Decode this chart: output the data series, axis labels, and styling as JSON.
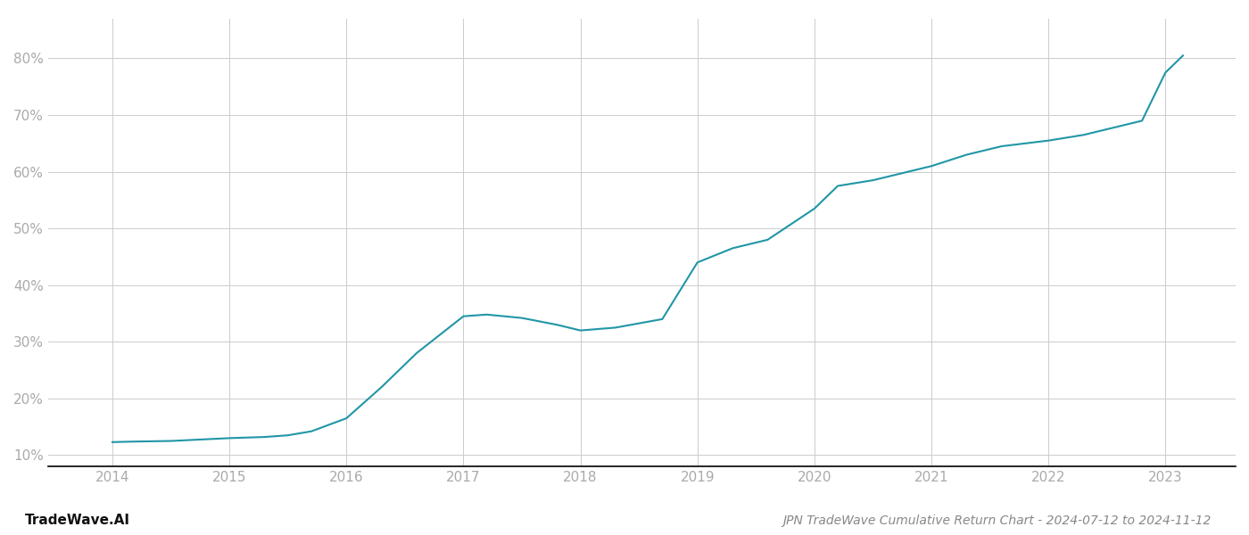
{
  "title": "JPN TradeWave Cumulative Return Chart - 2024-07-12 to 2024-11-12",
  "watermark": "TradeWave.AI",
  "line_color": "#2196a6",
  "background_color": "#ffffff",
  "grid_color": "#cccccc",
  "x_values": [
    2014.0,
    2014.2,
    2014.5,
    2014.8,
    2015.0,
    2015.3,
    2015.5,
    2015.7,
    2016.0,
    2016.3,
    2016.6,
    2017.0,
    2017.2,
    2017.5,
    2017.8,
    2018.0,
    2018.3,
    2018.7,
    2019.0,
    2019.3,
    2019.6,
    2020.0,
    2020.2,
    2020.5,
    2020.7,
    2021.0,
    2021.3,
    2021.6,
    2022.0,
    2022.3,
    2022.6,
    2022.8,
    2023.0,
    2023.15
  ],
  "y_values": [
    12.3,
    12.4,
    12.5,
    12.8,
    13.0,
    13.2,
    13.5,
    14.2,
    16.5,
    22.0,
    28.0,
    34.5,
    34.8,
    34.2,
    33.0,
    32.0,
    32.5,
    34.0,
    44.0,
    46.5,
    48.0,
    53.5,
    57.5,
    58.5,
    59.5,
    61.0,
    63.0,
    64.5,
    65.5,
    66.5,
    68.0,
    69.0,
    77.5,
    80.5
  ],
  "xlim": [
    2013.45,
    2023.6
  ],
  "ylim": [
    8,
    87
  ],
  "yticks": [
    10,
    20,
    30,
    40,
    50,
    60,
    70,
    80
  ],
  "xticks": [
    2014,
    2015,
    2016,
    2017,
    2018,
    2019,
    2020,
    2021,
    2022,
    2023
  ],
  "line_width": 1.5,
  "title_fontsize": 10,
  "tick_fontsize": 11,
  "watermark_fontsize": 11,
  "title_color": "#888888",
  "tick_color": "#aaaaaa",
  "spine_color": "#000000",
  "watermark_color": "#111111"
}
